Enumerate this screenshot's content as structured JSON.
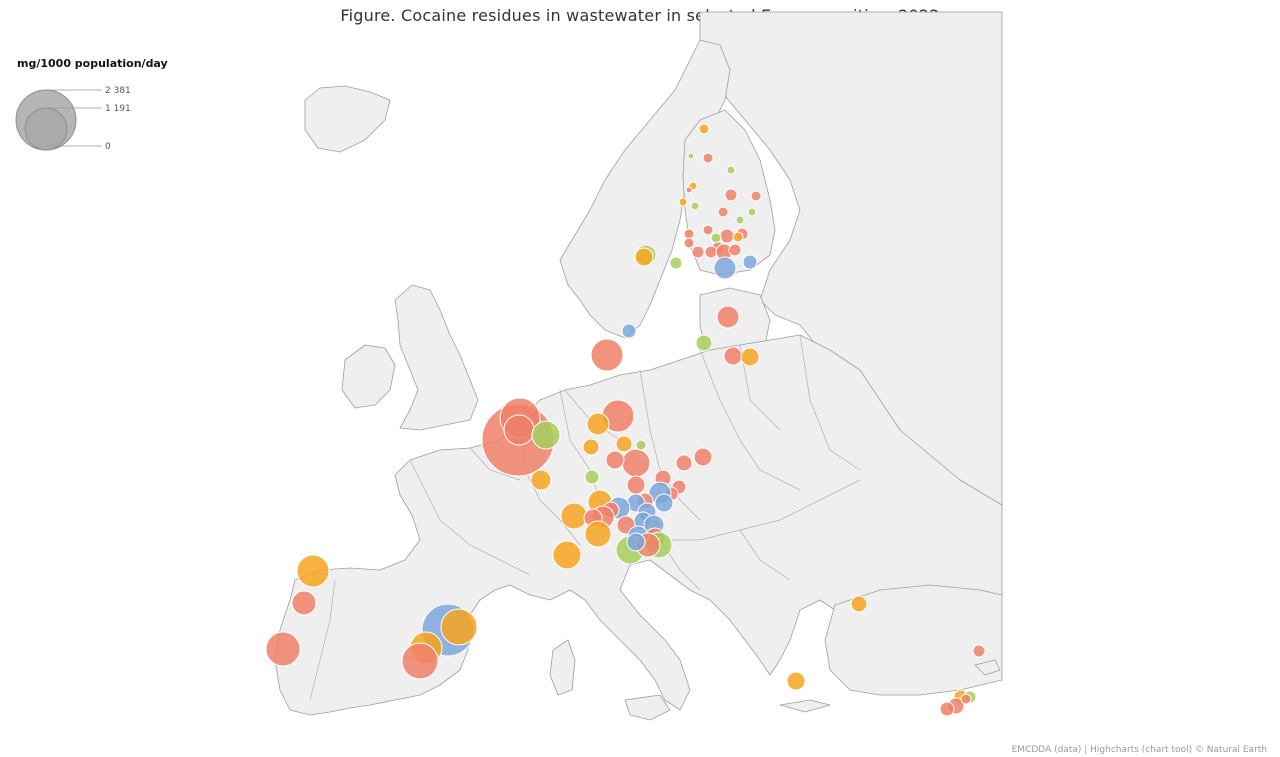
{
  "title": "Figure. Cocaine residues in wastewater in selected European cities, 2022",
  "legend": {
    "title": "mg/1000 population/day",
    "values": [
      "2 381",
      "1 191",
      "0"
    ],
    "color": "#a8a8a8"
  },
  "credits": "EMCDDA (data) | Highcharts (chart tool) © Natural Earth",
  "colors": {
    "orange": "#f7a420",
    "red": "#f0806a",
    "green": "#a6ce5a",
    "blue": "#7ea6dc"
  },
  "bubble_scale": {
    "max_value": 2381
  }
}
